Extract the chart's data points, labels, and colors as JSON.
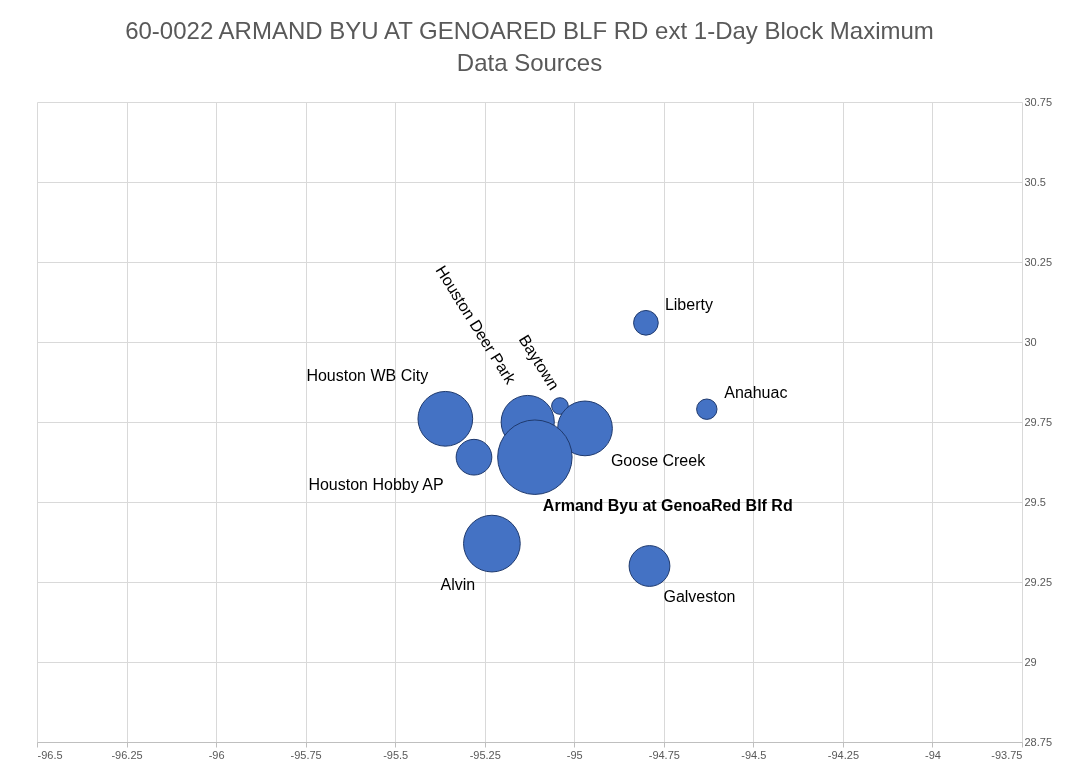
{
  "chart_data": {
    "type": "bubble",
    "title": "60-0022 ARMAND BYU AT GENOARED BLF RD ext 1-Day Block Maximum Data Sources",
    "x": [
      -95.36,
      -95.28,
      -95.13,
      -95.04,
      -94.97,
      -94.63,
      -94.8,
      -95.23,
      -94.79,
      -95.11
    ],
    "series": [
      {
        "color": "#4472c4",
        "values": [
          29.76,
          29.64,
          29.75,
          29.8,
          29.73,
          29.79,
          30.06,
          29.37,
          29.3,
          29.64
        ],
        "sizes": [
          0.54,
          0.23,
          0.51,
          0.05,
          0.54,
          0.075,
          0.11,
          0.58,
          0.3,
          1
        ]
      }
    ],
    "annotations": [
      {
        "text": "Houston  WB City",
        "x": -95.36,
        "y": 29.76
      },
      {
        "text": "Houston  Hobby AP",
        "x": -95.28,
        "y": 29.64
      },
      {
        "text": "Houston Deer Park",
        "x": -95.13,
        "y": 29.75
      },
      {
        "text": "Baytown",
        "x": -95.04,
        "y": 29.8
      },
      {
        "text": "Goose Creek",
        "x": -94.97,
        "y": 29.73
      },
      {
        "text": "Anahuac",
        "x": -94.63,
        "y": 29.79
      },
      {
        "text": "Liberty",
        "x": -94.8,
        "y": 30.06
      },
      {
        "text": "Alvin",
        "x": -95.23,
        "y": 29.37
      },
      {
        "text": "Galveston",
        "x": -94.79,
        "y": 29.3
      },
      {
        "text": "Armand Byu at GenoaRed Blf Rd",
        "x": -95.11,
        "y": 29.64
      }
    ],
    "xlim": [
      -96.5,
      -93.75
    ],
    "xticks": [
      -96.5,
      -96.25,
      -96,
      -95.75,
      -95.5,
      -95.25,
      -95,
      -94.75,
      -94.5,
      -94.25,
      -94,
      -93.75
    ],
    "ylim": [
      28.75,
      30.75
    ],
    "yticks": [
      28.75,
      29,
      29.25,
      29.5,
      29.75,
      30,
      30.25,
      30.5,
      30.75
    ],
    "grid": true
  }
}
